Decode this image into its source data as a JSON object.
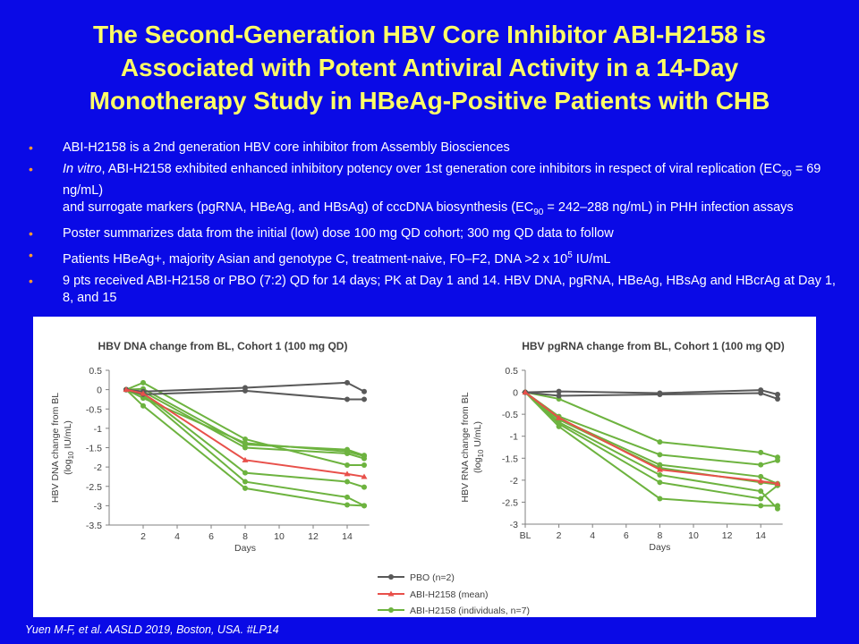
{
  "slide": {
    "title_lines": [
      "The Second-Generation HBV Core Inhibitor ABI-H2158 is",
      "Associated with Potent Antiviral Activity in a 14-Day",
      "Monotherapy Study in HBeAg-Positive Patients with CHB"
    ],
    "bullets": {
      "b1": "ABI-H2158 is a 2nd generation HBV core inhibitor from Assembly Biosciences",
      "b2_italic": "In vitro",
      "b2_a": ", ABI-H2158 exhibited enhanced inhibitory potency over 1st generation core inhibitors in respect of viral replication (EC",
      "b2_sub1": "90",
      "b2_b": " = 69 ng/mL)",
      "b2_c": "and surrogate markers (pgRNA, HBeAg, and HBsAg) of cccDNA biosynthesis (EC",
      "b2_sub2": "90",
      "b2_d": " = 242–288 ng/mL) in PHH infection assays",
      "b3": "Poster summarizes data from the initial (low) dose 100 mg QD cohort; 300 mg QD data to follow",
      "b4_a": "Patients HBeAg+, majority Asian and genotype C, treatment-naive,  F0–F2, DNA >2 x 10",
      "b4_sup": "5",
      "b4_b": " IU/mL",
      "b5": "9 pts received ABI-H2158 or PBO (7:2) QD for 14 days; PK at Day 1 and 14. HBV DNA, pgRNA, HBeAg, HBsAg and HBcrAg at Day 1, 8, and 15"
    },
    "bullet_symbol": "•",
    "citation": "Yuen M-F,  et al. AASLD 2019, Boston, USA. #LP14"
  },
  "colors": {
    "background": "#0a0ae6",
    "title": "#ffff66",
    "bullet": "#ff9a2e",
    "pbo": "#595959",
    "mean": "#e8504a",
    "individual": "#6db33f"
  },
  "legend": {
    "pbo": "PBO (n=2)",
    "mean": "ABI-H2158 (mean)",
    "individuals": "ABI-H2158 (individuals, n=7)"
  },
  "chart_data": [
    {
      "type": "line",
      "title": "HBV DNA change from BL, Cohort 1 (100 mg QD)",
      "xlabel": "Days",
      "ylabel_line1": "HBV DNA change from BL",
      "ylabel_line2_a": "(log",
      "ylabel_line2_sub": "10",
      "ylabel_line2_b": " IU/mL)",
      "x_ticks": [
        "2",
        "4",
        "6",
        "8",
        "10",
        "12",
        "14"
      ],
      "y_ticks": [
        "0.5",
        "0",
        "-0.5",
        "-1",
        "-1.5",
        "-2",
        "-2.5",
        "-3",
        "-3.5"
      ],
      "xlim": [
        0,
        15
      ],
      "ylim": [
        -3.5,
        0.5
      ],
      "series": [
        {
          "group": "pbo",
          "x": [
            1,
            2,
            8,
            14,
            15
          ],
          "y": [
            0,
            -0.05,
            0.05,
            0.18,
            -0.05
          ]
        },
        {
          "group": "pbo",
          "x": [
            1,
            2,
            8,
            14,
            15
          ],
          "y": [
            0,
            -0.12,
            -0.03,
            -0.25,
            -0.25
          ]
        },
        {
          "group": "individuals",
          "x": [
            1,
            2,
            8,
            14,
            15
          ],
          "y": [
            0,
            0.18,
            -1.28,
            -1.95,
            -1.95
          ]
        },
        {
          "group": "individuals",
          "x": [
            1,
            2,
            8,
            14,
            15
          ],
          "y": [
            0,
            0.02,
            -1.42,
            -1.55,
            -1.7
          ]
        },
        {
          "group": "individuals",
          "x": [
            1,
            2,
            8,
            14,
            15
          ],
          "y": [
            0,
            -0.05,
            -1.5,
            -1.65,
            -1.78
          ]
        },
        {
          "group": "individuals",
          "x": [
            1,
            2,
            8,
            14,
            15
          ],
          "y": [
            0,
            -0.1,
            -2.15,
            -2.38,
            -2.52
          ]
        },
        {
          "group": "individuals",
          "x": [
            1,
            2,
            8,
            14,
            15
          ],
          "y": [
            0,
            -0.15,
            -2.38,
            -2.78,
            -3.0
          ]
        },
        {
          "group": "individuals",
          "x": [
            1,
            2,
            8,
            14,
            15
          ],
          "y": [
            0,
            -0.42,
            -2.55,
            -2.98,
            -3.0
          ]
        },
        {
          "group": "individuals",
          "x": [
            1,
            2,
            8,
            14,
            15
          ],
          "y": [
            0,
            -0.22,
            -1.38,
            -1.6,
            -1.72
          ]
        },
        {
          "group": "mean",
          "x": [
            1,
            2,
            8,
            14,
            15
          ],
          "y": [
            0,
            -0.1,
            -1.82,
            -2.18,
            -2.25
          ]
        }
      ]
    },
    {
      "type": "line",
      "title": "HBV pgRNA change from BL, Cohort 1 (100 mg QD)",
      "xlabel": "Days",
      "ylabel_line1": "HBV RNA change from BL",
      "ylabel_line2_a": "(log",
      "ylabel_line2_sub": "10",
      "ylabel_line2_b": " U/mL)",
      "x_ticks": [
        "BL",
        "2",
        "4",
        "6",
        "8",
        "10",
        "12",
        "14"
      ],
      "y_ticks": [
        "0.5",
        "0",
        "-0.5",
        "-1",
        "-1.5",
        "-2",
        "-2.5",
        "-3"
      ],
      "xlim": [
        0,
        15
      ],
      "ylim": [
        -3,
        0.5
      ],
      "series": [
        {
          "group": "pbo",
          "x": [
            0,
            2,
            8,
            14,
            15
          ],
          "y": [
            0,
            0.02,
            -0.02,
            0.05,
            -0.05
          ]
        },
        {
          "group": "pbo",
          "x": [
            0,
            2,
            8,
            14,
            15
          ],
          "y": [
            0,
            -0.08,
            -0.05,
            -0.02,
            -0.15
          ]
        },
        {
          "group": "individuals",
          "x": [
            0,
            2,
            8,
            14,
            15
          ],
          "y": [
            0,
            -0.15,
            -1.13,
            -1.37,
            -1.48
          ]
        },
        {
          "group": "individuals",
          "x": [
            0,
            2,
            8,
            14,
            15
          ],
          "y": [
            0,
            -0.55,
            -1.42,
            -1.65,
            -1.55
          ]
        },
        {
          "group": "individuals",
          "x": [
            0,
            2,
            8,
            14,
            15
          ],
          "y": [
            0,
            -0.6,
            -1.65,
            -1.92,
            -2.08
          ]
        },
        {
          "group": "individuals",
          "x": [
            0,
            2,
            8,
            14,
            15
          ],
          "y": [
            0,
            -0.68,
            -1.88,
            -2.25,
            -2.65
          ]
        },
        {
          "group": "individuals",
          "x": [
            0,
            2,
            8,
            14,
            15
          ],
          "y": [
            0,
            -0.72,
            -2.05,
            -2.42,
            -2.12
          ]
        },
        {
          "group": "individuals",
          "x": [
            0,
            2,
            8,
            14,
            15
          ],
          "y": [
            0,
            -0.78,
            -2.42,
            -2.58,
            -2.58
          ]
        },
        {
          "group": "individuals",
          "x": [
            0,
            2,
            8,
            14,
            15
          ],
          "y": [
            0,
            -0.62,
            -1.72,
            -2.05,
            -2.1
          ]
        },
        {
          "group": "mean",
          "x": [
            0,
            2,
            8,
            14,
            15
          ],
          "y": [
            0,
            -0.58,
            -1.76,
            -2.02,
            -2.08
          ]
        }
      ]
    }
  ]
}
